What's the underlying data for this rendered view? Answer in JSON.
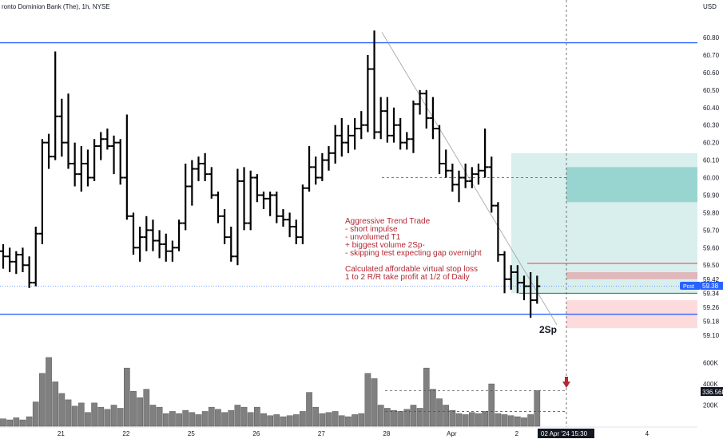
{
  "header": {
    "title": "ronto Dominion Bank (The), 1h, NYSE"
  },
  "colors": {
    "bars": "#000000",
    "volume": "#808080",
    "hline": "#2962ff",
    "annotation": "#b22833",
    "target_zone": "#26a69a",
    "stop_zone": "#f23645",
    "current_price_tag": "#2962ff",
    "volume_tag": "#131722"
  },
  "annotation": {
    "lines": [
      "Aggressive Trend Trade",
      "- short impulse",
      "- unvolumed T1",
      "+ biggest volume 2Sp-",
      "- skipping test expecting gap overnight",
      "",
      "Calculated affordable virtual stop loss",
      "1 to 2 R/R take profit at 1/2 of Daily"
    ]
  },
  "marker_label": "2Sp",
  "price_tag": {
    "prefix": "Post",
    "value": "59.38"
  },
  "volume_tag": {
    "value": "336.56K"
  },
  "date_tag": {
    "value": "02 Apr '24  15:30"
  },
  "chart_data": {
    "type": "ohlc",
    "title": "ronto Dominion Bank (The), 1h, NYSE",
    "price_axis": {
      "unit": "USD",
      "range": [
        59.05,
        60.92
      ],
      "ticks": [
        60.8,
        60.7,
        60.6,
        60.5,
        60.4,
        60.3,
        60.2,
        60.1,
        60.0,
        59.9,
        59.8,
        59.7,
        59.6,
        59.5,
        59.42,
        59.34,
        59.26,
        59.18,
        59.1
      ]
    },
    "volume_axis": {
      "range": [
        0,
        700000
      ],
      "ticks": [
        {
          "value": 600000,
          "label": "600K"
        },
        {
          "value": 400000,
          "label": "400K"
        },
        {
          "value": 200000,
          "label": "200K"
        }
      ]
    },
    "date_labels": [
      {
        "label": "21",
        "index": 9
      },
      {
        "label": "22",
        "index": 19
      },
      {
        "label": "25",
        "index": 29
      },
      {
        "label": "26",
        "index": 39
      },
      {
        "label": "27",
        "index": 49
      },
      {
        "label": "28",
        "index": 59
      },
      {
        "label": "Apr",
        "index": 69
      },
      {
        "label": "2",
        "index": 79
      },
      {
        "label": "4",
        "index": 99
      }
    ],
    "bars": [
      {
        "o": 59.58,
        "h": 59.62,
        "l": 59.48,
        "c": 59.55,
        "v": 70000
      },
      {
        "o": 59.55,
        "h": 59.6,
        "l": 59.46,
        "c": 59.52,
        "v": 60000
      },
      {
        "o": 59.52,
        "h": 59.58,
        "l": 59.45,
        "c": 59.56,
        "v": 80000
      },
      {
        "o": 59.56,
        "h": 59.6,
        "l": 59.46,
        "c": 59.5,
        "v": 60000
      },
      {
        "o": 59.5,
        "h": 59.55,
        "l": 59.37,
        "c": 59.4,
        "v": 90000
      },
      {
        "o": 59.4,
        "h": 59.72,
        "l": 59.38,
        "c": 59.68,
        "v": 230000
      },
      {
        "o": 59.68,
        "h": 60.22,
        "l": 59.62,
        "c": 60.2,
        "v": 500000
      },
      {
        "o": 60.2,
        "h": 60.25,
        "l": 60.05,
        "c": 60.12,
        "v": 650000
      },
      {
        "o": 60.12,
        "h": 60.72,
        "l": 60.1,
        "c": 60.35,
        "v": 420000
      },
      {
        "o": 60.35,
        "h": 60.45,
        "l": 60.12,
        "c": 60.2,
        "v": 310000
      },
      {
        "o": 60.2,
        "h": 60.48,
        "l": 60.05,
        "c": 60.08,
        "v": 250000
      },
      {
        "o": 60.08,
        "h": 60.2,
        "l": 59.95,
        "c": 60.02,
        "v": 190000
      },
      {
        "o": 60.02,
        "h": 60.18,
        "l": 59.92,
        "c": 60.08,
        "v": 220000
      },
      {
        "o": 60.08,
        "h": 60.16,
        "l": 59.95,
        "c": 60.0,
        "v": 130000
      },
      {
        "o": 60.0,
        "h": 60.22,
        "l": 59.98,
        "c": 60.18,
        "v": 220000
      },
      {
        "o": 60.18,
        "h": 60.26,
        "l": 60.1,
        "c": 60.22,
        "v": 180000
      },
      {
        "o": 60.22,
        "h": 60.28,
        "l": 60.16,
        "c": 60.18,
        "v": 160000
      },
      {
        "o": 60.18,
        "h": 60.24,
        "l": 60.02,
        "c": 60.2,
        "v": 200000
      },
      {
        "o": 60.2,
        "h": 60.22,
        "l": 59.96,
        "c": 60.0,
        "v": 170000
      },
      {
        "o": 60.0,
        "h": 60.36,
        "l": 59.76,
        "c": 59.78,
        "v": 550000
      },
      {
        "o": 59.78,
        "h": 59.8,
        "l": 59.56,
        "c": 59.6,
        "v": 330000
      },
      {
        "o": 59.6,
        "h": 59.72,
        "l": 59.52,
        "c": 59.66,
        "v": 270000
      },
      {
        "o": 59.66,
        "h": 59.78,
        "l": 59.58,
        "c": 59.7,
        "v": 350000
      },
      {
        "o": 59.7,
        "h": 59.76,
        "l": 59.58,
        "c": 59.64,
        "v": 200000
      },
      {
        "o": 59.64,
        "h": 59.7,
        "l": 59.54,
        "c": 59.62,
        "v": 180000
      },
      {
        "o": 59.62,
        "h": 59.68,
        "l": 59.52,
        "c": 59.58,
        "v": 120000
      },
      {
        "o": 59.58,
        "h": 59.64,
        "l": 59.52,
        "c": 59.6,
        "v": 140000
      },
      {
        "o": 59.6,
        "h": 59.76,
        "l": 59.58,
        "c": 59.74,
        "v": 120000
      },
      {
        "o": 59.74,
        "h": 60.08,
        "l": 59.7,
        "c": 59.95,
        "v": 150000
      },
      {
        "o": 59.95,
        "h": 60.1,
        "l": 59.84,
        "c": 60.05,
        "v": 130000
      },
      {
        "o": 60.05,
        "h": 60.12,
        "l": 59.98,
        "c": 60.08,
        "v": 110000
      },
      {
        "o": 60.08,
        "h": 60.14,
        "l": 59.98,
        "c": 60.02,
        "v": 140000
      },
      {
        "o": 60.02,
        "h": 60.06,
        "l": 59.88,
        "c": 59.9,
        "v": 180000
      },
      {
        "o": 59.9,
        "h": 59.92,
        "l": 59.74,
        "c": 59.78,
        "v": 160000
      },
      {
        "o": 59.78,
        "h": 59.82,
        "l": 59.62,
        "c": 59.66,
        "v": 130000
      },
      {
        "o": 59.66,
        "h": 59.72,
        "l": 59.52,
        "c": 59.55,
        "v": 150000
      },
      {
        "o": 59.55,
        "h": 60.05,
        "l": 59.5,
        "c": 59.98,
        "v": 200000
      },
      {
        "o": 59.98,
        "h": 60.06,
        "l": 59.7,
        "c": 59.74,
        "v": 180000
      },
      {
        "o": 59.74,
        "h": 60.04,
        "l": 59.7,
        "c": 60.0,
        "v": 130000
      },
      {
        "o": 60.0,
        "h": 60.02,
        "l": 59.86,
        "c": 59.9,
        "v": 180000
      },
      {
        "o": 59.9,
        "h": 59.92,
        "l": 59.82,
        "c": 59.88,
        "v": 120000
      },
      {
        "o": 59.88,
        "h": 59.92,
        "l": 59.78,
        "c": 59.9,
        "v": 100000
      },
      {
        "o": 59.9,
        "h": 59.92,
        "l": 59.74,
        "c": 59.78,
        "v": 110000
      },
      {
        "o": 59.78,
        "h": 59.82,
        "l": 59.72,
        "c": 59.76,
        "v": 90000
      },
      {
        "o": 59.76,
        "h": 59.8,
        "l": 59.66,
        "c": 59.72,
        "v": 100000
      },
      {
        "o": 59.72,
        "h": 59.76,
        "l": 59.62,
        "c": 59.66,
        "v": 110000
      },
      {
        "o": 59.66,
        "h": 59.96,
        "l": 59.62,
        "c": 59.94,
        "v": 140000
      },
      {
        "o": 59.94,
        "h": 60.18,
        "l": 59.92,
        "c": 60.06,
        "v": 320000
      },
      {
        "o": 60.06,
        "h": 60.12,
        "l": 59.96,
        "c": 60.0,
        "v": 180000
      },
      {
        "o": 60.0,
        "h": 60.14,
        "l": 59.98,
        "c": 60.1,
        "v": 120000
      },
      {
        "o": 60.1,
        "h": 60.18,
        "l": 60.04,
        "c": 60.14,
        "v": 130000
      },
      {
        "o": 60.14,
        "h": 60.3,
        "l": 60.08,
        "c": 60.24,
        "v": 140000
      },
      {
        "o": 60.24,
        "h": 60.34,
        "l": 60.12,
        "c": 60.2,
        "v": 100000
      },
      {
        "o": 60.2,
        "h": 60.3,
        "l": 60.14,
        "c": 60.24,
        "v": 90000
      },
      {
        "o": 60.24,
        "h": 60.34,
        "l": 60.16,
        "c": 60.28,
        "v": 110000
      },
      {
        "o": 60.28,
        "h": 60.38,
        "l": 60.22,
        "c": 60.3,
        "v": 120000
      },
      {
        "o": 60.3,
        "h": 60.7,
        "l": 60.26,
        "c": 60.62,
        "v": 500000
      },
      {
        "o": 60.62,
        "h": 60.84,
        "l": 60.22,
        "c": 60.26,
        "v": 450000
      },
      {
        "o": 60.26,
        "h": 60.46,
        "l": 60.22,
        "c": 60.38,
        "v": 200000
      },
      {
        "o": 60.38,
        "h": 60.46,
        "l": 60.2,
        "c": 60.24,
        "v": 170000
      },
      {
        "o": 60.24,
        "h": 60.4,
        "l": 60.2,
        "c": 60.3,
        "v": 150000
      },
      {
        "o": 60.3,
        "h": 60.34,
        "l": 60.16,
        "c": 60.2,
        "v": 140000
      },
      {
        "o": 60.2,
        "h": 60.26,
        "l": 60.16,
        "c": 60.22,
        "v": 160000
      },
      {
        "o": 60.22,
        "h": 60.44,
        "l": 60.14,
        "c": 60.42,
        "v": 200000
      },
      {
        "o": 60.42,
        "h": 60.5,
        "l": 60.36,
        "c": 60.48,
        "v": 170000
      },
      {
        "o": 60.48,
        "h": 60.5,
        "l": 60.28,
        "c": 60.34,
        "v": 550000
      },
      {
        "o": 60.34,
        "h": 60.46,
        "l": 60.22,
        "c": 60.28,
        "v": 350000
      },
      {
        "o": 60.28,
        "h": 60.3,
        "l": 60.02,
        "c": 60.08,
        "v": 260000
      },
      {
        "o": 60.08,
        "h": 60.16,
        "l": 60.0,
        "c": 60.04,
        "v": 200000
      },
      {
        "o": 60.04,
        "h": 60.08,
        "l": 59.92,
        "c": 59.96,
        "v": 150000
      },
      {
        "o": 59.96,
        "h": 60.04,
        "l": 59.86,
        "c": 60.0,
        "v": 120000
      },
      {
        "o": 60.0,
        "h": 60.08,
        "l": 59.94,
        "c": 59.98,
        "v": 110000
      },
      {
        "o": 59.98,
        "h": 60.06,
        "l": 59.94,
        "c": 60.02,
        "v": 130000
      },
      {
        "o": 60.02,
        "h": 60.08,
        "l": 59.96,
        "c": 60.04,
        "v": 120000
      },
      {
        "o": 60.04,
        "h": 60.28,
        "l": 60.0,
        "c": 60.06,
        "v": 140000
      },
      {
        "o": 60.06,
        "h": 60.12,
        "l": 59.8,
        "c": 59.84,
        "v": 400000
      },
      {
        "o": 59.84,
        "h": 59.86,
        "l": 59.52,
        "c": 59.56,
        "v": 120000
      },
      {
        "o": 59.56,
        "h": 59.58,
        "l": 59.34,
        "c": 59.42,
        "v": 110000
      },
      {
        "o": 59.42,
        "h": 59.5,
        "l": 59.36,
        "c": 59.46,
        "v": 100000
      },
      {
        "o": 59.46,
        "h": 59.5,
        "l": 59.34,
        "c": 59.4,
        "v": 90000
      },
      {
        "o": 59.4,
        "h": 59.44,
        "l": 59.3,
        "c": 59.38,
        "v": 80000
      },
      {
        "o": 59.38,
        "h": 59.46,
        "l": 59.2,
        "c": 59.3,
        "v": 110000
      },
      {
        "o": 59.3,
        "h": 59.44,
        "l": 59.28,
        "c": 59.38,
        "v": 336560
      }
    ],
    "horizontal_lines": [
      {
        "price": 60.77,
        "style": "solid",
        "color": "#2962ff"
      },
      {
        "price": 59.22,
        "style": "solid",
        "color": "#2962ff"
      }
    ],
    "target_level": 60.0,
    "position": {
      "entry": 59.34,
      "stop": 59.51,
      "stop_band": [
        59.42,
        59.46
      ],
      "targets": [
        [
          59.86,
          60.06
        ],
        [
          59.86,
          60.14
        ]
      ],
      "lower_band": [
        59.14,
        59.3
      ]
    },
    "current_price": 59.38
  }
}
